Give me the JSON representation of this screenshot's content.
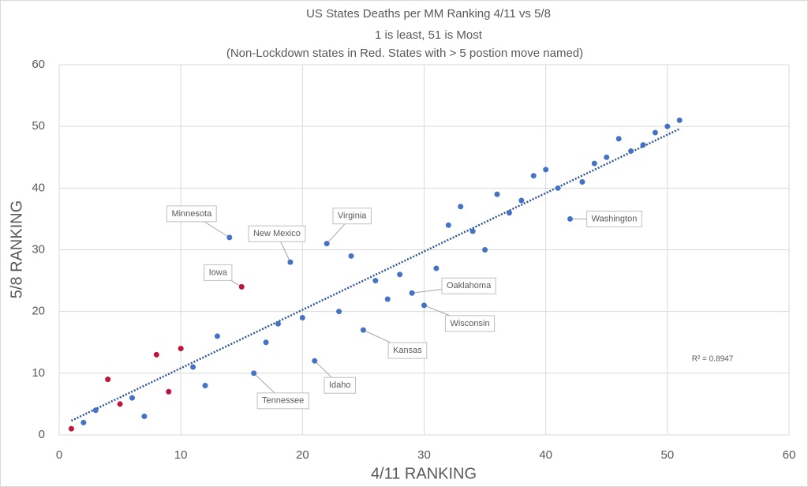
{
  "chart_data": {
    "type": "scatter",
    "title": [
      "US States Deaths per MM Ranking 4/11 vs 5/8",
      "1 is least, 51 is Most",
      "(Non-Lockdown states in Red.  States with > 5 postion move named)"
    ],
    "x_label": "4/11 RANKING",
    "y_label": "5/8 RANKING",
    "xlim": [
      0,
      60
    ],
    "ylim": [
      0,
      60
    ],
    "xticks": [
      0,
      10,
      20,
      30,
      40,
      50,
      60
    ],
    "yticks": [
      0,
      10,
      20,
      30,
      40,
      50,
      60
    ],
    "grid": true,
    "series": [
      {
        "color": "#4472c4",
        "x": [
          2,
          3,
          6,
          7,
          11,
          12,
          13,
          14,
          16,
          17,
          18,
          19,
          20,
          21,
          22,
          23,
          24,
          25,
          26,
          27,
          28,
          29,
          30,
          31,
          32,
          33,
          34,
          35,
          36,
          37,
          38,
          39,
          40,
          41,
          42,
          43,
          44,
          45,
          46,
          47,
          48,
          49,
          50,
          51
        ],
        "values": [
          2,
          4,
          6,
          3,
          11,
          8,
          16,
          32,
          10,
          15,
          18,
          28,
          19,
          12,
          31,
          20,
          29,
          17,
          25,
          22,
          26,
          23,
          21,
          27,
          34,
          37,
          33,
          30,
          39,
          36,
          38,
          42,
          43,
          40,
          35,
          41,
          44,
          45,
          48,
          46,
          47,
          49,
          50,
          51
        ],
        "labels": [
          null,
          null,
          null,
          null,
          null,
          null,
          null,
          "Minnesota",
          "Tennessee",
          null,
          null,
          "New Mexico",
          null,
          "Idaho",
          "Virginia",
          null,
          null,
          "Kansas",
          null,
          null,
          null,
          "Oaklahoma",
          "Wisconsin",
          null,
          null,
          null,
          null,
          null,
          null,
          null,
          null,
          null,
          null,
          null,
          "Washington",
          null,
          null,
          null,
          null,
          null,
          null,
          null,
          null,
          null
        ]
      },
      {
        "color": "#c0143c",
        "x": [
          1,
          4,
          5,
          8,
          9,
          10,
          15
        ],
        "values": [
          1,
          9,
          5,
          13,
          7,
          14,
          24
        ],
        "labels": [
          null,
          null,
          null,
          null,
          null,
          null,
          "Iowa"
        ]
      }
    ],
    "trendline": {
      "style": "dotted",
      "color": "#2f5597",
      "x": [
        1,
        51
      ],
      "values": [
        2.3,
        49.6
      ]
    },
    "annotation": "R² = 0.8947"
  }
}
